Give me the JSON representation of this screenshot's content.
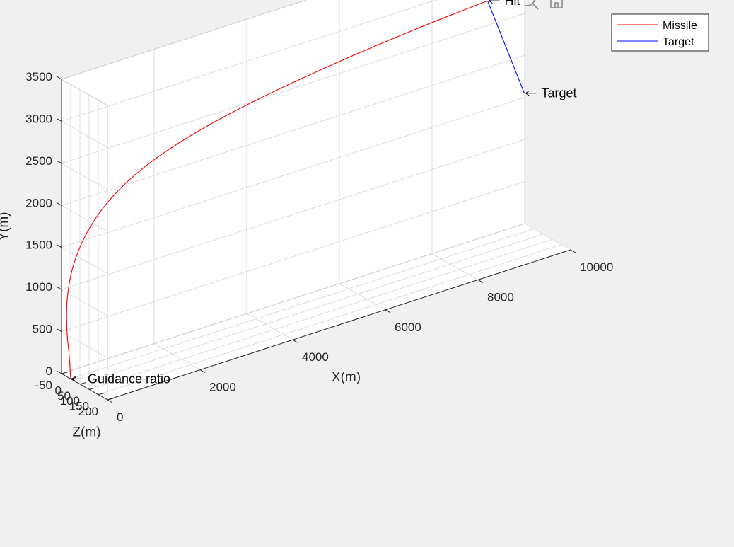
{
  "toolbar": {
    "icons": [
      "export-icon",
      "brush-icon",
      "datatip-icon",
      "rotate-icon",
      "pan-icon",
      "zoom-in-icon",
      "zoom-out-icon",
      "home-icon"
    ]
  },
  "legend": {
    "position": "top-right",
    "entries": [
      {
        "label": "Missile",
        "color": "#ff0000"
      },
      {
        "label": "Target",
        "color": "#0000ff"
      }
    ]
  },
  "chart_data": {
    "type": "line",
    "projection": "3d",
    "xlabel": "X(m)",
    "ylabel": "Y(m)",
    "zlabel": "Z(m)",
    "xlim": [
      0,
      10000
    ],
    "ylim": [
      0,
      3500
    ],
    "zlim": [
      -50,
      200
    ],
    "xticks": [
      0,
      2000,
      4000,
      6000,
      8000,
      10000
    ],
    "yticks": [
      0,
      500,
      1000,
      1500,
      2000,
      2500,
      3000,
      3500
    ],
    "zticks": [
      -50,
      0,
      50,
      100,
      150,
      200
    ],
    "grid": true,
    "series": [
      {
        "name": "Missile",
        "color": "#ff0000",
        "points": [
          {
            "x": 0,
            "y": 0,
            "z": 0
          },
          {
            "x": 0,
            "y": 260,
            "z": -8
          },
          {
            "x": 5,
            "y": 560,
            "z": -22
          },
          {
            "x": 60,
            "y": 900,
            "z": -34
          },
          {
            "x": 220,
            "y": 1250,
            "z": -42
          },
          {
            "x": 520,
            "y": 1580,
            "z": -45
          },
          {
            "x": 1000,
            "y": 1880,
            "z": -45
          },
          {
            "x": 1700,
            "y": 2140,
            "z": -41
          },
          {
            "x": 2700,
            "y": 2360,
            "z": -34
          },
          {
            "x": 4000,
            "y": 2540,
            "z": -25
          },
          {
            "x": 5600,
            "y": 2690,
            "z": -16
          },
          {
            "x": 7400,
            "y": 2810,
            "z": -8
          },
          {
            "x": 9000,
            "y": 2890,
            "z": 0
          }
        ]
      },
      {
        "name": "Target",
        "color": "#0000ff",
        "points": [
          {
            "x": 9000,
            "y": 2040,
            "z": 200
          },
          {
            "x": 9000,
            "y": 2890,
            "z": 0
          }
        ]
      }
    ],
    "annotations": [
      {
        "text": "Guidance ratio",
        "x": 0,
        "y": 0,
        "z": 0
      },
      {
        "text": "Target",
        "x": 9000,
        "y": 2040,
        "z": 200
      },
      {
        "text": "Hit",
        "x": 9000,
        "y": 2890,
        "z": 0
      }
    ]
  }
}
